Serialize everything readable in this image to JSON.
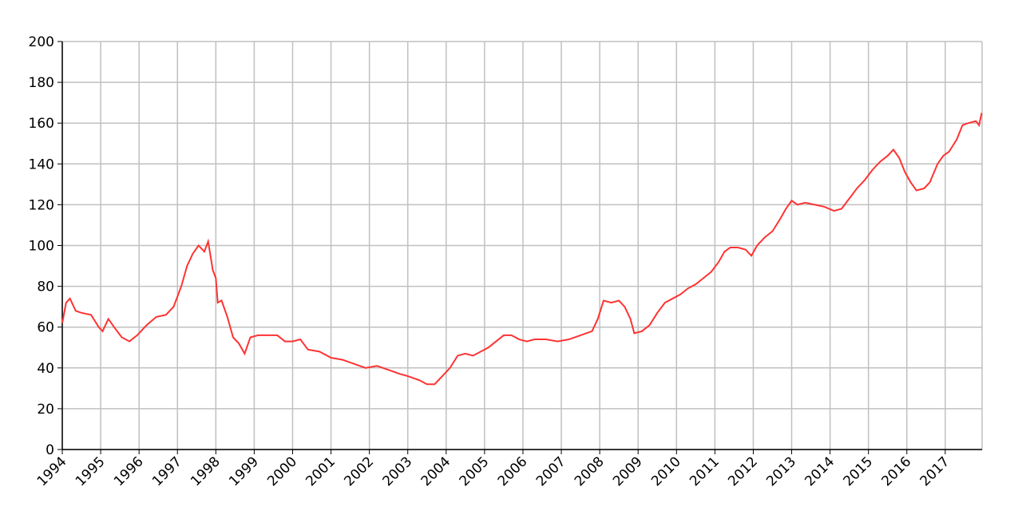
{
  "chart_data": {
    "type": "line",
    "x": [
      1994.0,
      1994.1,
      1994.2,
      1994.35,
      1994.5,
      1994.75,
      1994.95,
      1995.05,
      1995.2,
      1995.35,
      1995.55,
      1995.75,
      1995.95,
      1996.2,
      1996.45,
      1996.7,
      1996.9,
      1997.1,
      1997.25,
      1997.4,
      1997.55,
      1997.7,
      1997.8,
      1997.92,
      1998.0,
      1998.05,
      1998.15,
      1998.3,
      1998.45,
      1998.6,
      1998.75,
      1998.9,
      1999.1,
      1999.35,
      1999.6,
      1999.8,
      2000.0,
      2000.2,
      2000.4,
      2000.7,
      2001.0,
      2001.3,
      2001.6,
      2001.9,
      2002.2,
      2002.5,
      2002.8,
      2003.0,
      2003.3,
      2003.5,
      2003.7,
      2003.9,
      2004.1,
      2004.3,
      2004.5,
      2004.7,
      2004.9,
      2005.1,
      2005.3,
      2005.5,
      2005.7,
      2005.9,
      2006.1,
      2006.3,
      2006.6,
      2006.9,
      2007.2,
      2007.5,
      2007.8,
      2007.95,
      2008.1,
      2008.3,
      2008.5,
      2008.65,
      2008.8,
      2008.9,
      2009.1,
      2009.3,
      2009.5,
      2009.7,
      2009.9,
      2010.1,
      2010.3,
      2010.5,
      2010.7,
      2010.9,
      2011.1,
      2011.25,
      2011.4,
      2011.6,
      2011.8,
      2011.95,
      2012.1,
      2012.3,
      2012.5,
      2012.7,
      2012.85,
      2013.0,
      2013.15,
      2013.35,
      2013.6,
      2013.85,
      2014.1,
      2014.3,
      2014.5,
      2014.7,
      2014.9,
      2015.1,
      2015.3,
      2015.5,
      2015.65,
      2015.8,
      2015.95,
      2016.1,
      2016.25,
      2016.45,
      2016.6,
      2016.8,
      2016.95,
      2017.1,
      2017.3,
      2017.45,
      2017.6,
      2017.8,
      2017.88,
      2017.95
    ],
    "series": [
      {
        "color": "#ff3333",
        "values": [
          62,
          72,
          74,
          68,
          67,
          66,
          60,
          58,
          64,
          60,
          55,
          53,
          56,
          61,
          65,
          66,
          70,
          80,
          90,
          96,
          100,
          97,
          102,
          88,
          84,
          72,
          73,
          65,
          55,
          52,
          47,
          55,
          56,
          56,
          56,
          53,
          53,
          54,
          49,
          48,
          45,
          44,
          42,
          40,
          41,
          39,
          37,
          36,
          34,
          32,
          32,
          36,
          40,
          46,
          47,
          46,
          48,
          50,
          53,
          56,
          56,
          54,
          53,
          54,
          54,
          53,
          54,
          56,
          58,
          64,
          73,
          72,
          73,
          70,
          64,
          57,
          58,
          61,
          67,
          72,
          74,
          76,
          79,
          81,
          84,
          87,
          92,
          97,
          99,
          99,
          98,
          95,
          100,
          104,
          107,
          113,
          118,
          122,
          120,
          121,
          120,
          119,
          117,
          118,
          123,
          128,
          132,
          137,
          141,
          144,
          147,
          143,
          136,
          131,
          127,
          128,
          131,
          140,
          144,
          146,
          152,
          159,
          160,
          161,
          159,
          165
        ]
      }
    ],
    "xlim": [
      1994,
      2017.96
    ],
    "xticks": [
      1994,
      1995,
      1996,
      1997,
      1998,
      1999,
      2000,
      2001,
      2002,
      2003,
      2004,
      2005,
      2006,
      2007,
      2008,
      2009,
      2010,
      2011,
      2012,
      2013,
      2014,
      2015,
      2016,
      2017
    ],
    "ylim": [
      0,
      200
    ],
    "yticks": [
      0,
      20,
      40,
      60,
      80,
      100,
      120,
      140,
      160,
      180,
      200
    ],
    "grid": true
  }
}
